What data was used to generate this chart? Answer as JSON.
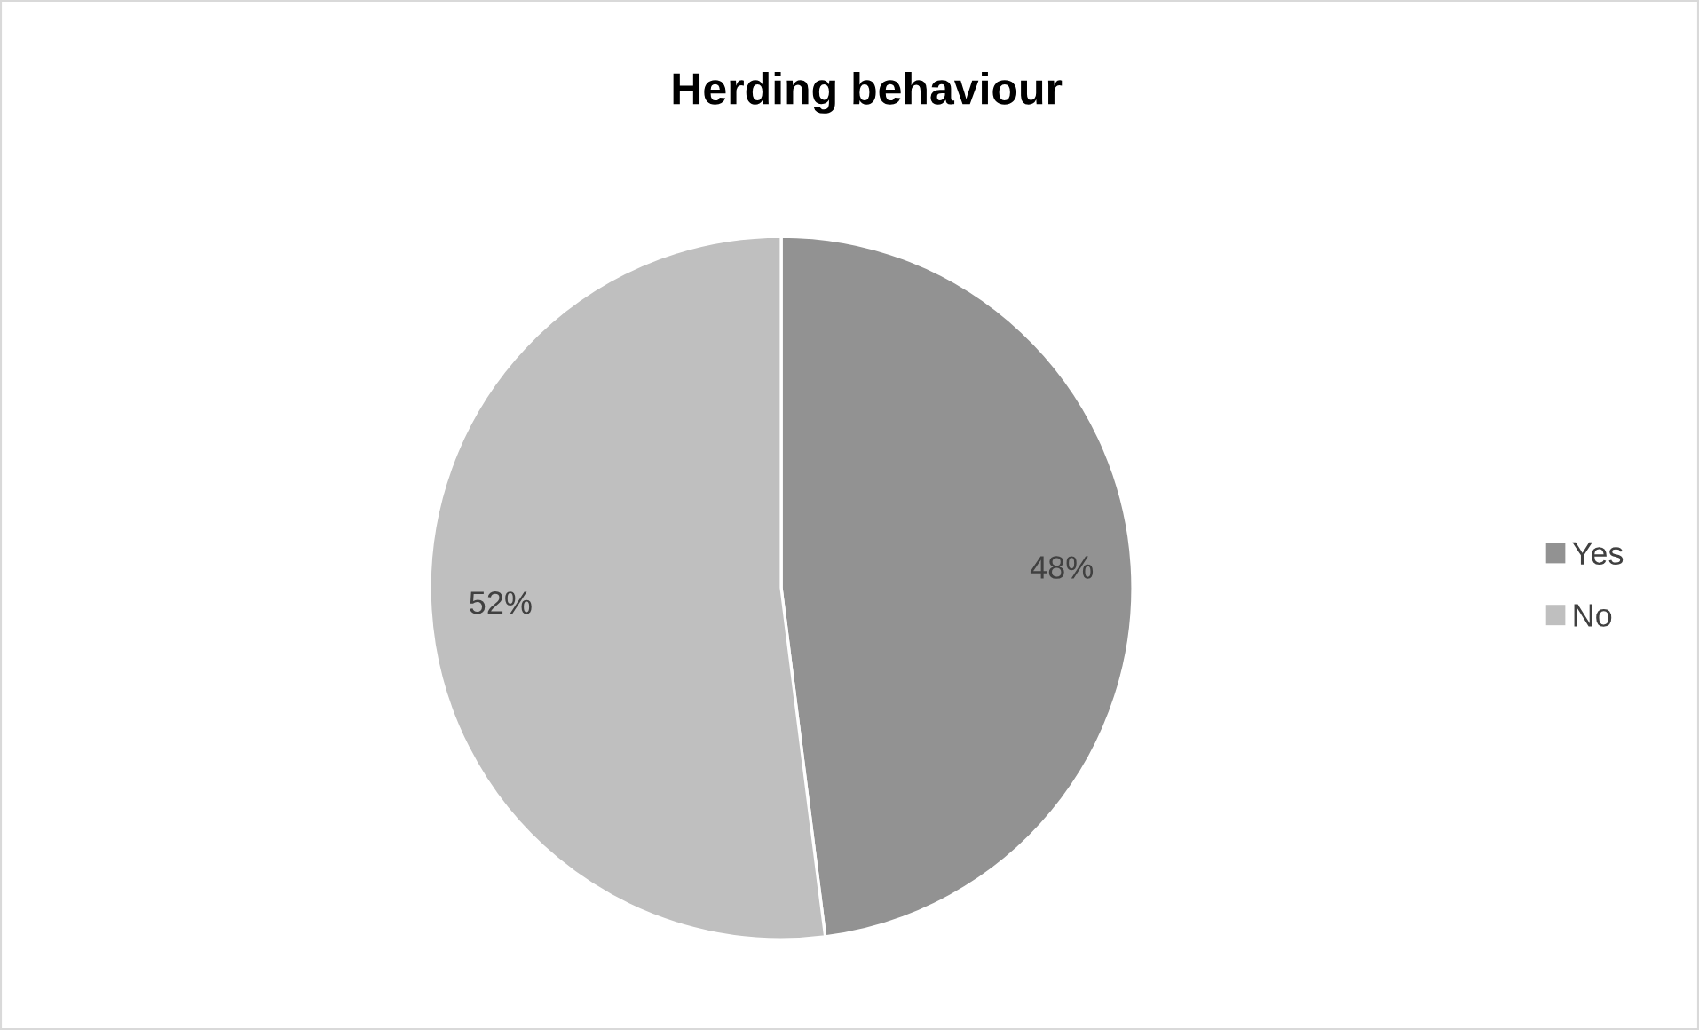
{
  "chart_data": {
    "type": "pie",
    "title": "Herding behaviour",
    "categories": [
      "Yes",
      "No"
    ],
    "values": [
      48,
      52
    ],
    "colors": [
      "#929292",
      "#bfbfbf"
    ],
    "value_labels": [
      "48%",
      "52%"
    ],
    "legend": "right"
  }
}
